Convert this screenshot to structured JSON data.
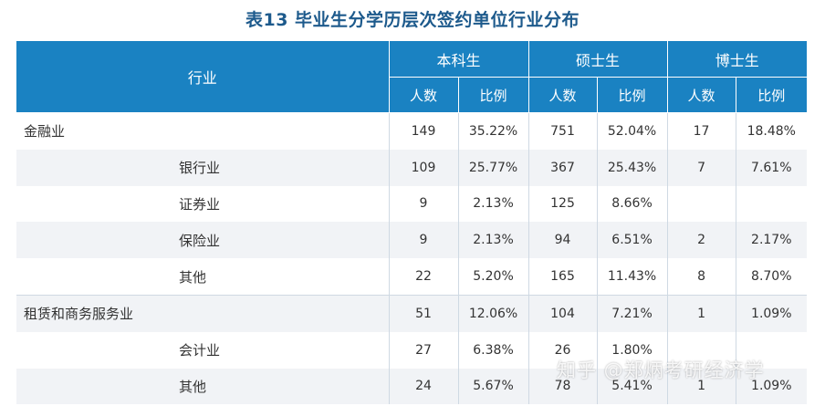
{
  "title": "表13  毕业生分学历层次签约单位行业分布",
  "header": {
    "industry": "行业",
    "groups": [
      "本科生",
      "硕士生",
      "博士生"
    ],
    "count_label": "人数",
    "ratio_label": "比例"
  },
  "rows": [
    {
      "name": "金融业",
      "level": "major",
      "values": [
        "149",
        "35.22%",
        "751",
        "52.04%",
        "17",
        "18.48%"
      ]
    },
    {
      "name": "银行业",
      "level": "sub",
      "values": [
        "109",
        "25.77%",
        "367",
        "25.43%",
        "7",
        "7.61%"
      ]
    },
    {
      "name": "证券业",
      "level": "sub",
      "values": [
        "9",
        "2.13%",
        "125",
        "8.66%",
        "",
        ""
      ]
    },
    {
      "name": "保险业",
      "level": "sub",
      "values": [
        "9",
        "2.13%",
        "94",
        "6.51%",
        "2",
        "2.17%"
      ]
    },
    {
      "name": "其他",
      "level": "sub",
      "values": [
        "22",
        "5.20%",
        "165",
        "11.43%",
        "8",
        "8.70%"
      ]
    },
    {
      "name": "租赁和商务服务业",
      "level": "major",
      "values": [
        "51",
        "12.06%",
        "104",
        "7.21%",
        "1",
        "1.09%"
      ]
    },
    {
      "name": "会计业",
      "level": "sub",
      "values": [
        "27",
        "6.38%",
        "26",
        "1.80%",
        "",
        ""
      ]
    },
    {
      "name": "其他",
      "level": "sub",
      "values": [
        "24",
        "5.67%",
        "78",
        "5.41%",
        "1",
        "1.09%"
      ]
    }
  ],
  "watermark": "知乎 @郑炳考研经济学"
}
